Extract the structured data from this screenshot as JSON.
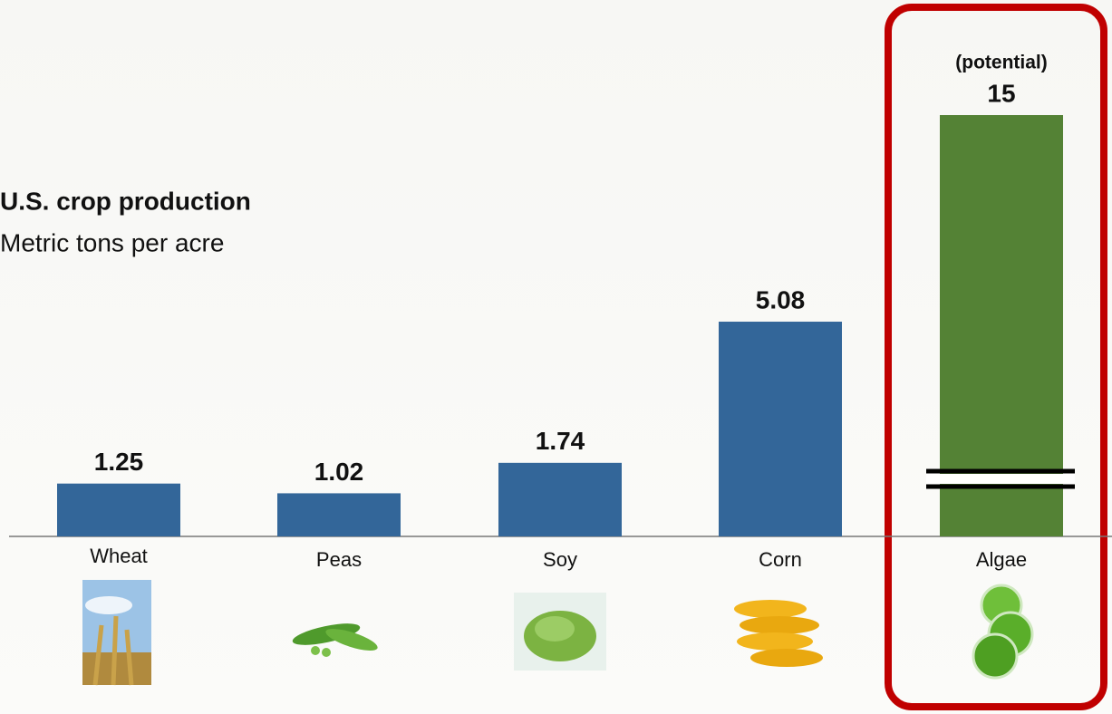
{
  "chart_data": {
    "type": "bar",
    "title": "U.S. crop production",
    "subtitle": "Metric tons per acre",
    "categories": [
      "Wheat",
      "Peas",
      "Soy",
      "Corn",
      "Algae"
    ],
    "values": [
      1.25,
      1.02,
      1.74,
      5.08,
      15
    ],
    "colors": [
      "#336699",
      "#336699",
      "#336699",
      "#336699",
      "#548235"
    ],
    "annotation": "(potential)",
    "axis_break": true
  }
}
